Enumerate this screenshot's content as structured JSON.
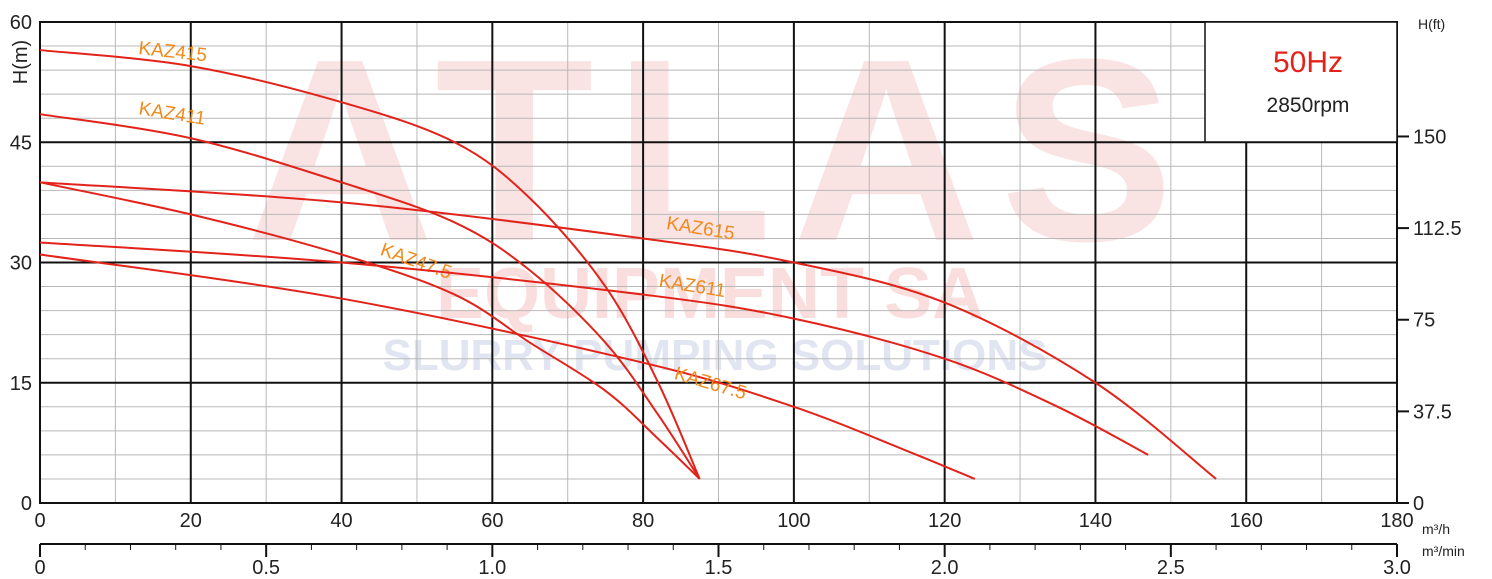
{
  "watermark": {
    "main": "ATLAS",
    "line2": "EQUIPMENT SA",
    "line3": "SLURRY PUMPING SOLUTIONS"
  },
  "info_box": {
    "frequency": "50Hz",
    "speed": "2850rpm"
  },
  "colors": {
    "curve": "#e2231a",
    "label": "#f08a1c",
    "grid_major": "#111111",
    "grid_minor": "#b8b8b8"
  },
  "chart_data": {
    "type": "line",
    "title": "",
    "xlabel": "m³/h",
    "x2label": "m³/min",
    "ylabel": "H(m)",
    "y2label": "H(ft)",
    "xlim": [
      0,
      180
    ],
    "ylim": [
      0,
      60
    ],
    "x2lim": [
      0,
      3.0
    ],
    "x_ticks": [
      "0",
      "20",
      "40",
      "60",
      "80",
      "100",
      "120",
      "140",
      "160",
      "180"
    ],
    "x2_ticks": [
      "0",
      "0.5",
      "1.0",
      "1.5",
      "2.0",
      "2.5",
      "3.0"
    ],
    "y_ticks": [
      "0",
      "15",
      "30",
      "45",
      "60"
    ],
    "y2_ticks": [
      "0",
      "37.5",
      "75",
      "112.5",
      "150"
    ],
    "grid": true,
    "series": [
      {
        "name": "KAZ415",
        "x": [
          0,
          20,
          40,
          55,
          65,
          75,
          82,
          87.5
        ],
        "y": [
          56.5,
          54.5,
          50,
          45,
          38,
          27,
          15,
          3
        ],
        "label_at": [
          13,
          56
        ]
      },
      {
        "name": "KAZ411",
        "x": [
          0,
          20,
          40,
          55,
          65,
          75,
          82,
          87.5
        ],
        "y": [
          48.5,
          45.5,
          40,
          35,
          29,
          20,
          11,
          3
        ],
        "label_at": [
          13,
          48.5
        ]
      },
      {
        "name": "KAZ47.5",
        "x": [
          0,
          20,
          40,
          55,
          65,
          75,
          82,
          87.5
        ],
        "y": [
          40,
          36,
          31,
          26,
          20,
          14,
          8,
          3
        ],
        "label_at": [
          45,
          31
        ]
      },
      {
        "name": "KAZ615",
        "x": [
          0,
          40,
          80,
          100,
          120,
          140,
          156
        ],
        "y": [
          40,
          37.5,
          33,
          30,
          25,
          15,
          3
        ],
        "label_at": [
          83,
          34.2
        ]
      },
      {
        "name": "KAZ611",
        "x": [
          0,
          40,
          80,
          100,
          120,
          135,
          147
        ],
        "y": [
          32.5,
          30,
          26,
          23,
          18,
          12,
          6
        ],
        "label_at": [
          82,
          27
        ]
      },
      {
        "name": "KAZ67.5",
        "x": [
          0,
          40,
          80,
          100,
          115,
          124
        ],
        "y": [
          31,
          25.5,
          17.5,
          12,
          6.5,
          3
        ],
        "label_at": [
          84,
          15.5
        ]
      }
    ]
  }
}
